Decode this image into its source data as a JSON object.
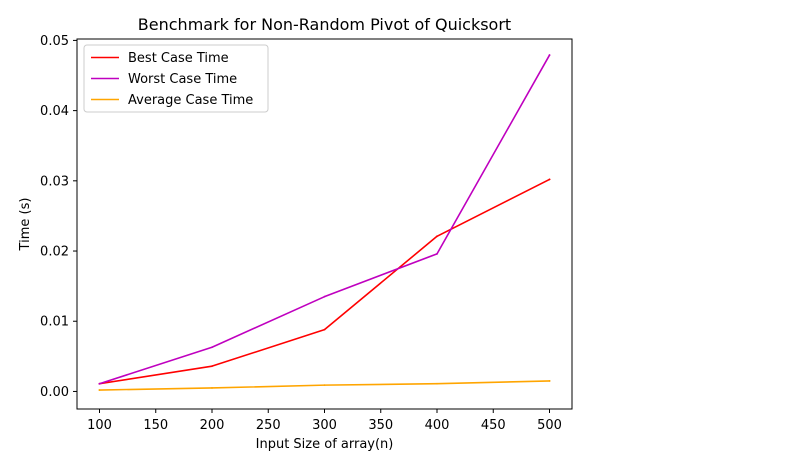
{
  "chart_data": {
    "type": "line",
    "title": "Benchmark for Non-Random Pivot of Quicksort",
    "xlabel": "Input Size of array(n)",
    "ylabel": "Time (s)",
    "x": [
      100,
      200,
      300,
      400,
      500
    ],
    "xlim": [
      80,
      520
    ],
    "ylim": [
      -0.0025,
      0.0502
    ],
    "xticks": [
      100,
      150,
      200,
      250,
      300,
      350,
      400,
      450,
      500
    ],
    "xtick_labels": [
      "100",
      "150",
      "200",
      "250",
      "300",
      "350",
      "400",
      "450",
      "500"
    ],
    "yticks": [
      0.0,
      0.01,
      0.02,
      0.03,
      0.04,
      0.05
    ],
    "ytick_labels": [
      "0.00",
      "0.01",
      "0.02",
      "0.03",
      "0.04",
      "0.05"
    ],
    "grid": false,
    "legend_position": "top-left",
    "series": [
      {
        "name": "Best Case Time",
        "color": "#ff0000",
        "values": [
          0.0011,
          0.0036,
          0.0088,
          0.0221,
          0.0302
        ]
      },
      {
        "name": "Worst Case Time",
        "color": "#bf00bf",
        "values": [
          0.0011,
          0.0063,
          0.0135,
          0.0196,
          0.0479
        ]
      },
      {
        "name": "Average Case Time",
        "color": "#ffa500",
        "values": [
          0.0002,
          0.0005,
          0.0009,
          0.0011,
          0.0015
        ]
      }
    ]
  }
}
